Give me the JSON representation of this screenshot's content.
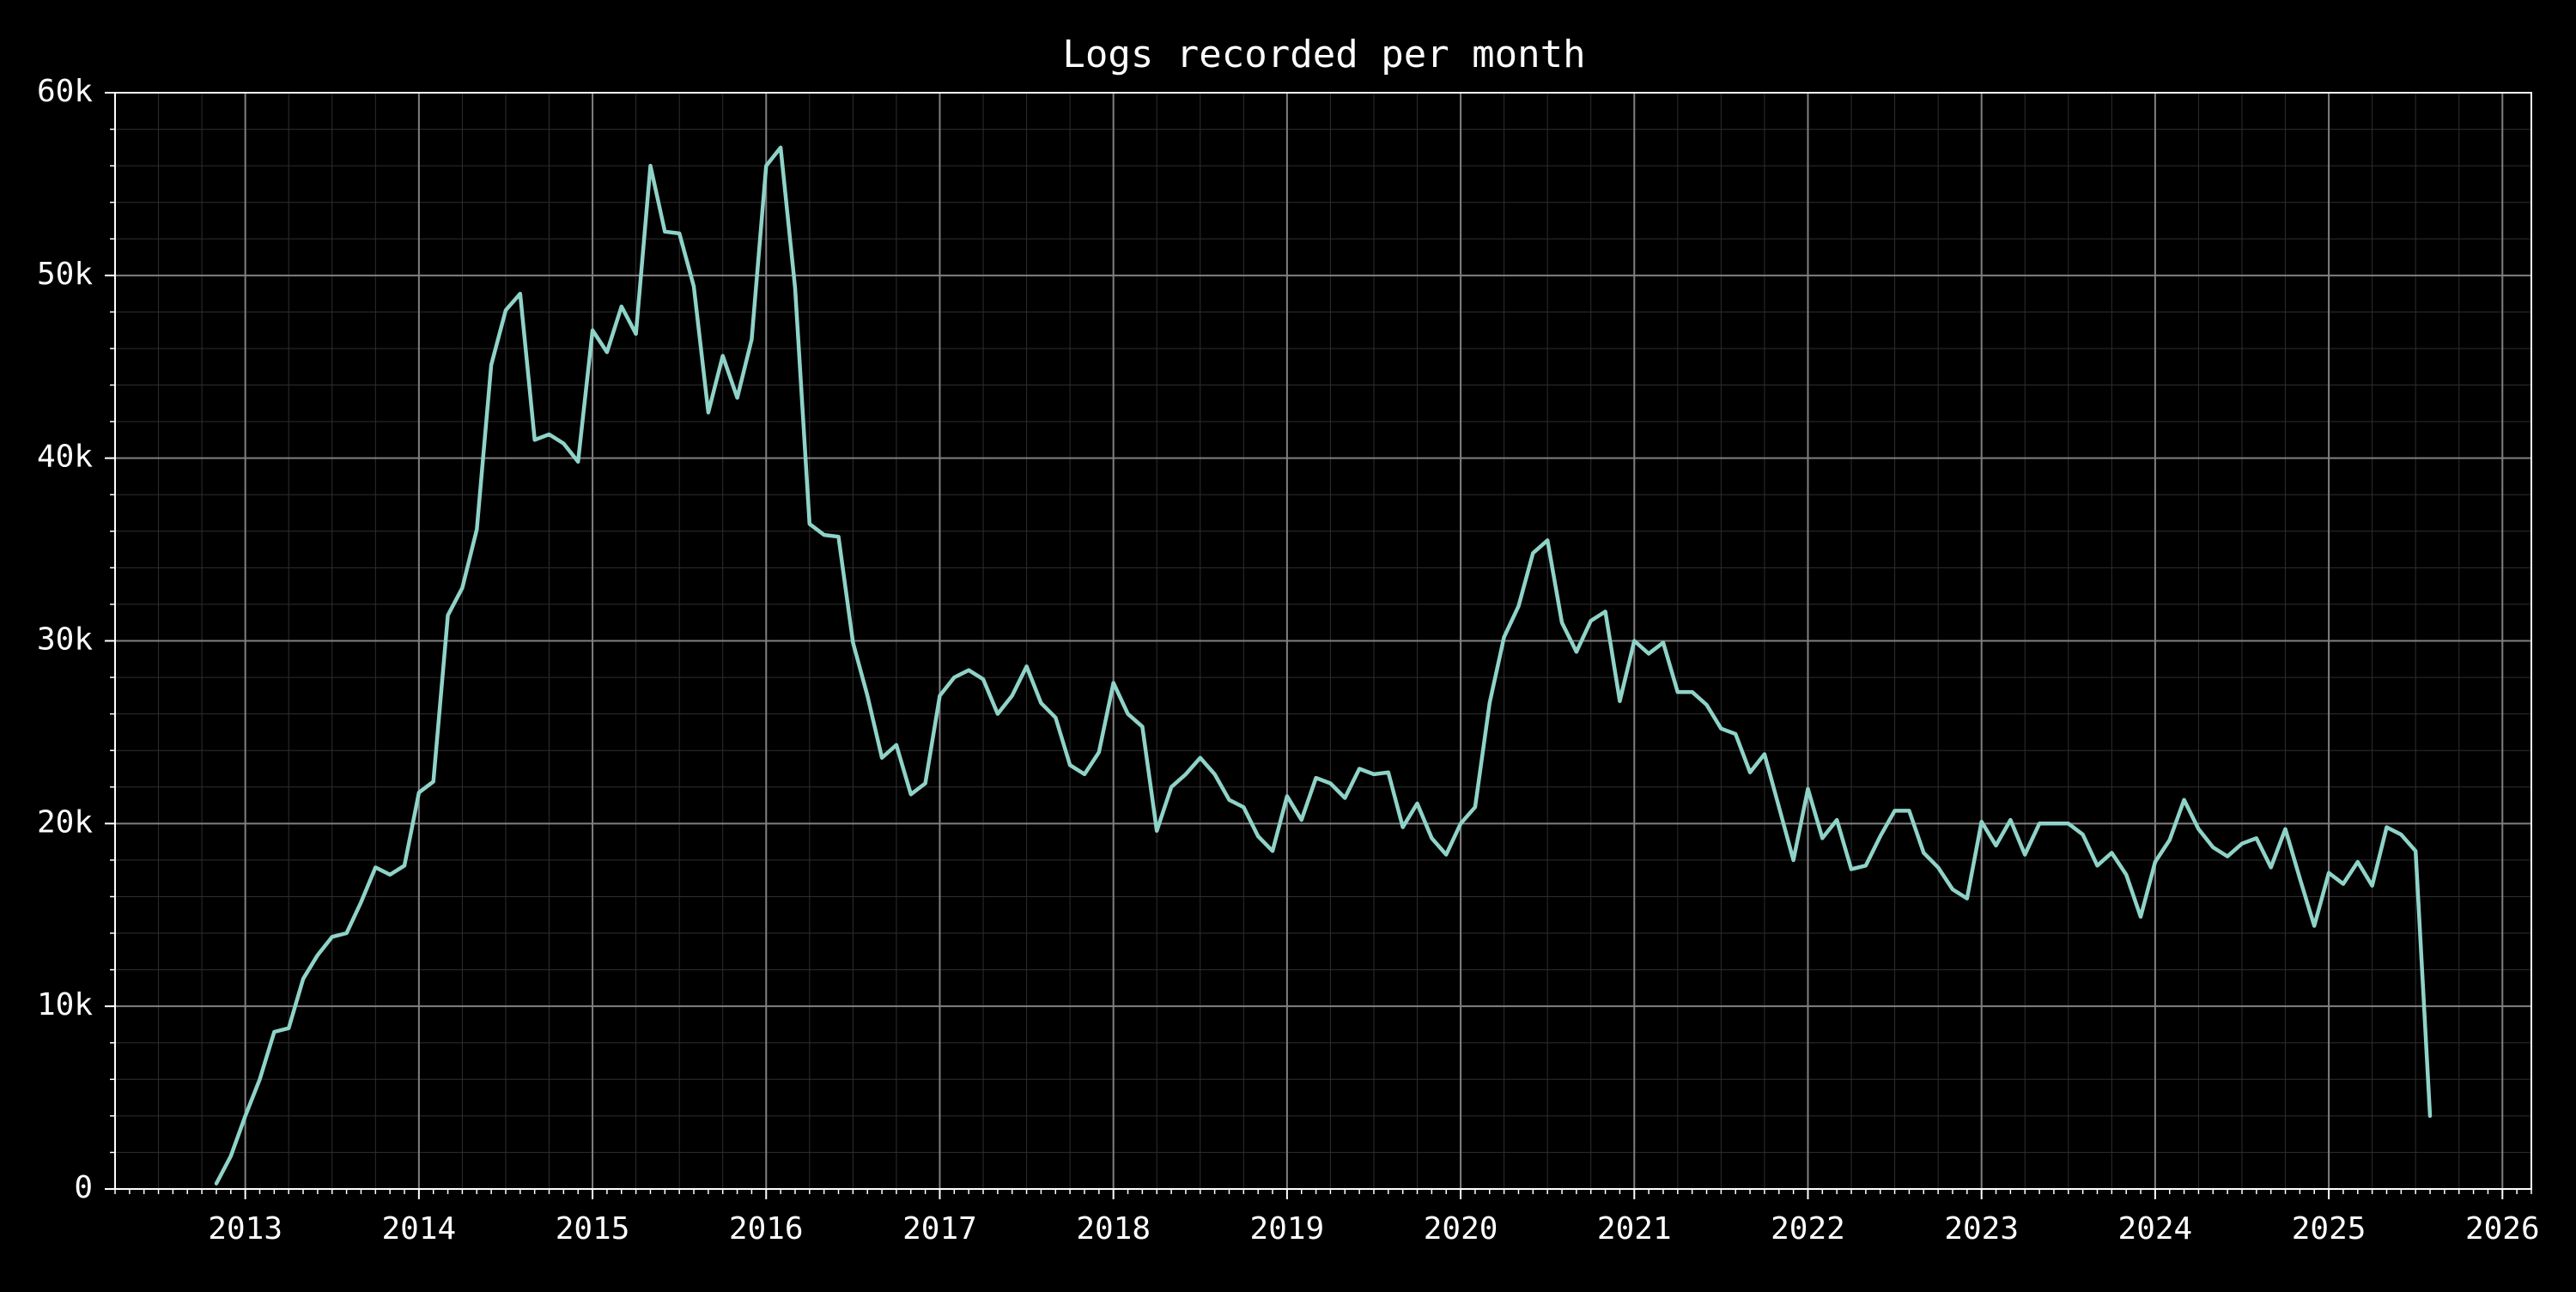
{
  "chart_data": {
    "type": "line",
    "title": "Logs recorded per month",
    "xlabel": "",
    "ylabel": "",
    "xlim": [
      "2012-04",
      "2026-03"
    ],
    "ylim": [
      0,
      60000
    ],
    "grid": true,
    "legend": "none",
    "colors": {
      "background": "#000000",
      "line": "#8fd3c8",
      "major_grid": "#808080",
      "minor_grid": "#2e2e2e",
      "axis": "#ffffff",
      "text": "#ffffff"
    },
    "x_ticks": [
      "2013",
      "2014",
      "2015",
      "2016",
      "2017",
      "2018",
      "2019",
      "2020",
      "2021",
      "2022",
      "2023",
      "2024",
      "2025",
      "2026"
    ],
    "y_ticks": [
      {
        "value": 0,
        "label": "0"
      },
      {
        "value": 10000,
        "label": "10k"
      },
      {
        "value": 20000,
        "label": "20k"
      },
      {
        "value": 30000,
        "label": "30k"
      },
      {
        "value": 40000,
        "label": "40k"
      },
      {
        "value": 50000,
        "label": "50k"
      },
      {
        "value": 60000,
        "label": "60k"
      }
    ],
    "series": [
      {
        "x": [
          "2012-11",
          "2012-12",
          "2013-01",
          "2013-02",
          "2013-03",
          "2013-04",
          "2013-05",
          "2013-06",
          "2013-07",
          "2013-08",
          "2013-09",
          "2013-10",
          "2013-11",
          "2013-12",
          "2014-01",
          "2014-02",
          "2014-03",
          "2014-04",
          "2014-05",
          "2014-06",
          "2014-07",
          "2014-08",
          "2014-09",
          "2014-10",
          "2014-11",
          "2014-12",
          "2015-01",
          "2015-02",
          "2015-03",
          "2015-04",
          "2015-05",
          "2015-06",
          "2015-07",
          "2015-08",
          "2015-09",
          "2015-10",
          "2015-11",
          "2015-12",
          "2016-01",
          "2016-02",
          "2016-03",
          "2016-04",
          "2016-05",
          "2016-06",
          "2016-07",
          "2016-08",
          "2016-09",
          "2016-10",
          "2016-11",
          "2016-12",
          "2017-01",
          "2017-02",
          "2017-03",
          "2017-04",
          "2017-05",
          "2017-06",
          "2017-07",
          "2017-08",
          "2017-09",
          "2017-10",
          "2017-11",
          "2017-12",
          "2018-01",
          "2018-02",
          "2018-03",
          "2018-04",
          "2018-05",
          "2018-06",
          "2018-07",
          "2018-08",
          "2018-09",
          "2018-10",
          "2018-11",
          "2018-12",
          "2019-01",
          "2019-02",
          "2019-03",
          "2019-04",
          "2019-05",
          "2019-06",
          "2019-07",
          "2019-08",
          "2019-09",
          "2019-10",
          "2019-11",
          "2019-12",
          "2020-01",
          "2020-02",
          "2020-03",
          "2020-04",
          "2020-05",
          "2020-06",
          "2020-07",
          "2020-08",
          "2020-09",
          "2020-10",
          "2020-11",
          "2020-12",
          "2021-01",
          "2021-02",
          "2021-03",
          "2021-04",
          "2021-05",
          "2021-06",
          "2021-07",
          "2021-08",
          "2021-09",
          "2021-10",
          "2021-11",
          "2021-12",
          "2022-01",
          "2022-02",
          "2022-03",
          "2022-04",
          "2022-05",
          "2022-06",
          "2022-07",
          "2022-08",
          "2022-09",
          "2022-10",
          "2022-11",
          "2022-12",
          "2023-01",
          "2023-02",
          "2023-03",
          "2023-04",
          "2023-05",
          "2023-06",
          "2023-07",
          "2023-08",
          "2023-09",
          "2023-10",
          "2023-11",
          "2023-12",
          "2024-01",
          "2024-02",
          "2024-03",
          "2024-04",
          "2024-05",
          "2024-06",
          "2024-07",
          "2024-08",
          "2024-09",
          "2024-10",
          "2024-11",
          "2024-12",
          "2025-01",
          "2025-02",
          "2025-03",
          "2025-04",
          "2025-05",
          "2025-06",
          "2025-07",
          "2025-08"
        ],
        "values": [
          300,
          1800,
          4000,
          6000,
          8600,
          8800,
          11500,
          12800,
          13800,
          14000,
          15700,
          17600,
          17200,
          17700,
          21700,
          22300,
          31400,
          32900,
          36100,
          45100,
          48100,
          49000,
          41000,
          41300,
          40800,
          39800,
          47000,
          45800,
          48300,
          46800,
          56000,
          52400,
          52300,
          49400,
          42500,
          45600,
          43300,
          46500,
          56000,
          57000,
          49300,
          36400,
          35800,
          35700,
          29900,
          27000,
          23600,
          24300,
          21600,
          22200,
          27000,
          28000,
          28400,
          27900,
          26000,
          27000,
          28600,
          26600,
          25800,
          23200,
          22700,
          23900,
          27700,
          26000,
          25300,
          19600,
          22000,
          22700,
          23600,
          22700,
          21300,
          20900,
          19300,
          18500,
          21500,
          20200,
          22500,
          22200,
          21400,
          23000,
          22700,
          22800,
          19800,
          21100,
          19200,
          18300,
          20000,
          20900,
          26600,
          30200,
          31900,
          34800,
          35500,
          31000,
          29400,
          31100,
          31600,
          26700,
          30000,
          29300,
          29900,
          27200,
          27200,
          26500,
          25200,
          24900,
          22800,
          23800,
          20900,
          18000,
          21900,
          19200,
          20200,
          17500,
          17700,
          19300,
          20700,
          20700,
          18400,
          17600,
          16400,
          15900,
          20100,
          18800,
          20200,
          18300,
          20000,
          20000,
          20000,
          19400,
          17700,
          18400,
          17200,
          14900,
          17900,
          19100,
          21300,
          19700,
          18700,
          18200,
          18900,
          19200,
          17600,
          19700,
          17000,
          14400,
          17300,
          16700,
          17900,
          16600,
          19800,
          19400,
          18500,
          4000
        ]
      }
    ]
  }
}
